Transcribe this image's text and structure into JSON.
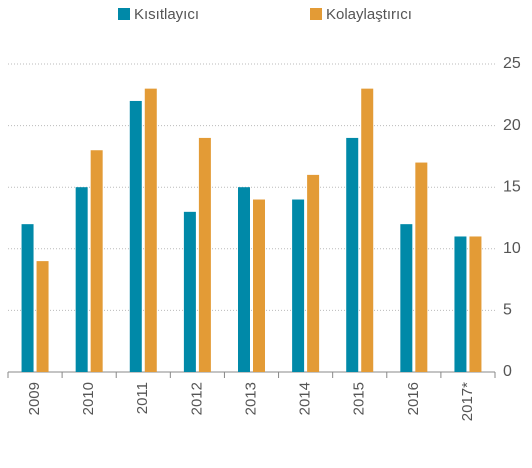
{
  "chart_data": {
    "type": "bar",
    "categories": [
      "2009",
      "2010",
      "2011",
      "2012",
      "2013",
      "2014",
      "2015",
      "2016",
      "2017*"
    ],
    "series": [
      {
        "name": "Kısıtlayıcı",
        "color": "#0089a8",
        "values": [
          12,
          15,
          22,
          13,
          15,
          14,
          19,
          12,
          11
        ]
      },
      {
        "name": "Kolaylaştırıcı",
        "color": "#e39b36",
        "values": [
          9,
          18,
          23,
          19,
          14,
          16,
          23,
          17,
          11
        ]
      }
    ],
    "ylim": [
      0,
      25
    ],
    "yticks": [
      0,
      5,
      10,
      15,
      20,
      25
    ],
    "grid": true,
    "y_axis_side": "right",
    "legend": "top"
  }
}
